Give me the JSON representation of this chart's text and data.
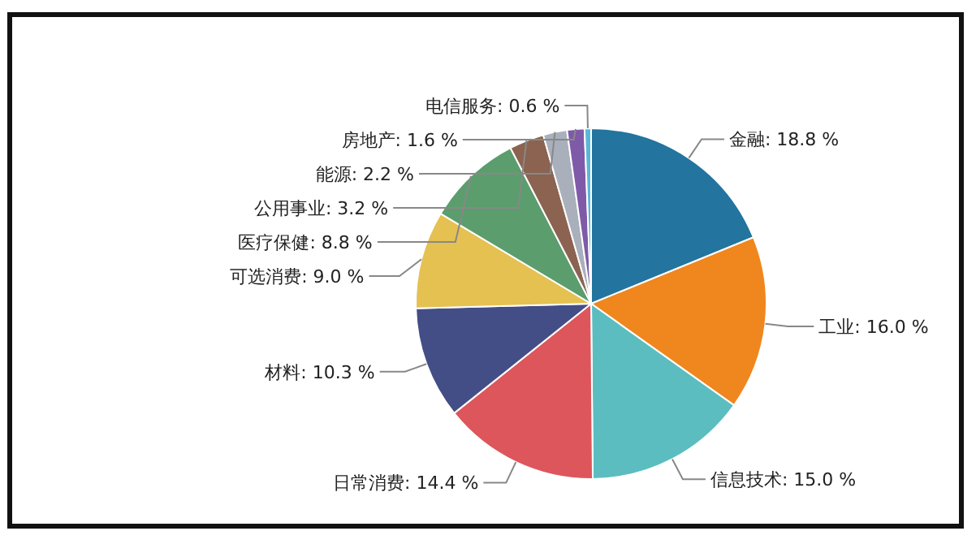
{
  "chart_data": {
    "type": "pie",
    "categories": [
      "金融",
      "工业",
      "信息技术",
      "日常消费",
      "材料",
      "可选消费",
      "医疗保健",
      "公用事业",
      "能源",
      "房地产",
      "电信服务"
    ],
    "values": [
      18.8,
      16.0,
      15.0,
      14.4,
      10.3,
      9.0,
      8.8,
      3.2,
      2.2,
      1.6,
      0.6
    ],
    "colors": [
      "#23749f",
      "#f0861e",
      "#5bbdc0",
      "#dd565c",
      "#434d86",
      "#e5c152",
      "#5c9d6e",
      "#8b6350",
      "#a9b0bb",
      "#7f5aa8",
      "#59b8d8"
    ],
    "value_labels": [
      "18.8 %",
      "16.0 %",
      "15.0 %",
      "14.4 %",
      "10.3 %",
      "9.0 %",
      "8.8 %",
      "3.2 %",
      "2.2 %",
      "1.6 %",
      "0.6 %"
    ]
  }
}
